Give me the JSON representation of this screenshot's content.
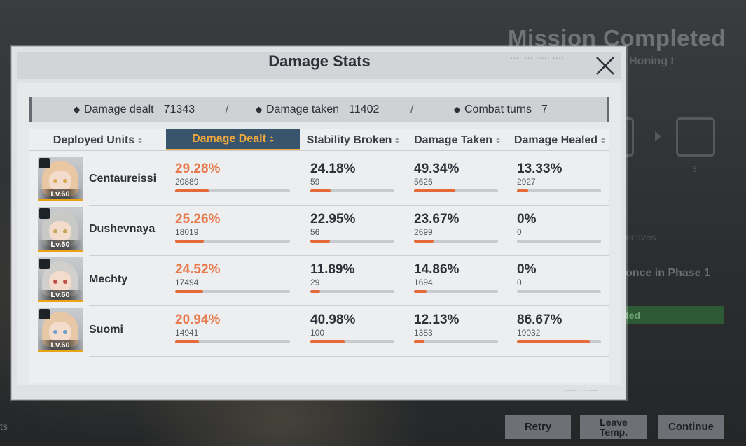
{
  "background": {
    "title": "Mission Completed",
    "subtitle": "Honing I",
    "count": "3",
    "objectives_label": "ectives",
    "objective_text": "once in Phase 1",
    "completed_label": "ted",
    "left_text": "ts",
    "buttons": {
      "retry": "Retry",
      "leave_line1": "Leave",
      "leave_line2": "Temp.",
      "continue": "Continue"
    }
  },
  "modal": {
    "title": "Damage Stats",
    "summary": {
      "damage_dealt_label": "Damage dealt",
      "damage_dealt_value": "71343",
      "damage_taken_label": "Damage taken",
      "damage_taken_value": "11402",
      "combat_turns_label": "Combat turns",
      "combat_turns_value": "7",
      "separator": "/"
    },
    "columns": [
      "Deployed Units",
      "Damage Dealt",
      "Stability Broken",
      "Damage Taken",
      "Damage Healed"
    ],
    "active_column": "Damage Dealt",
    "units": [
      {
        "name": "Centaureissi",
        "level": "Lv.60",
        "damage_dealt": {
          "pct": "29.28%",
          "value": "20889",
          "fill": 0.2928
        },
        "stability_broken": {
          "pct": "24.18%",
          "value": "59",
          "fill": 0.2418
        },
        "damage_taken": {
          "pct": "49.34%",
          "value": "5626",
          "fill": 0.4934
        },
        "damage_healed": {
          "pct": "13.33%",
          "value": "2927",
          "fill": 0.1333
        }
      },
      {
        "name": "Dushevnaya",
        "level": "Lv.60",
        "damage_dealt": {
          "pct": "25.26%",
          "value": "18019",
          "fill": 0.2526
        },
        "stability_broken": {
          "pct": "22.95%",
          "value": "56",
          "fill": 0.2295
        },
        "damage_taken": {
          "pct": "23.67%",
          "value": "2699",
          "fill": 0.2367
        },
        "damage_healed": {
          "pct": "0%",
          "value": "0",
          "fill": 0
        }
      },
      {
        "name": "Mechty",
        "level": "Lv.60",
        "damage_dealt": {
          "pct": "24.52%",
          "value": "17494",
          "fill": 0.2452
        },
        "stability_broken": {
          "pct": "11.89%",
          "value": "29",
          "fill": 0.1189
        },
        "damage_taken": {
          "pct": "14.86%",
          "value": "1694",
          "fill": 0.1486
        },
        "damage_healed": {
          "pct": "0%",
          "value": "0",
          "fill": 0
        }
      },
      {
        "name": "Suomi",
        "level": "Lv.60",
        "damage_dealt": {
          "pct": "20.94%",
          "value": "14941",
          "fill": 0.2094
        },
        "stability_broken": {
          "pct": "40.98%",
          "value": "100",
          "fill": 0.4098
        },
        "damage_taken": {
          "pct": "12.13%",
          "value": "1383",
          "fill": 0.1213
        },
        "damage_healed": {
          "pct": "86.67%",
          "value": "19032",
          "fill": 0.8667
        }
      }
    ]
  },
  "colors": {
    "accent_orange": "#e8794a",
    "active_tab_bg": "#39556d",
    "active_tab_text": "#f2a93b",
    "bar_fill": "#e46a3a",
    "level_border": "#e8a317"
  },
  "icons": {
    "close": "close-icon",
    "summary_bullet": "diamond-icon",
    "sort": "sort-arrows-icon",
    "unit_class": "class-badge-icon"
  }
}
